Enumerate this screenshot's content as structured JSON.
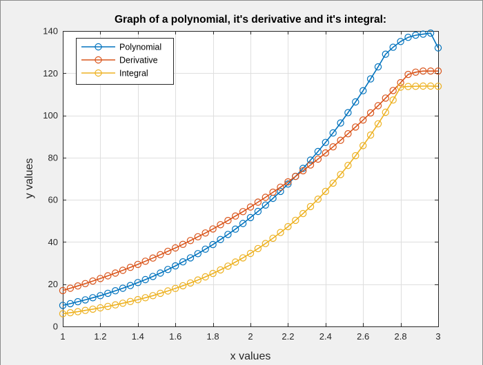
{
  "chart_data": {
    "type": "line",
    "title": "Graph of a polynomial, it's derivative and it's integral:",
    "xlabel": "x values",
    "ylabel": "y values",
    "xlim": [
      1,
      3
    ],
    "ylim": [
      0,
      140
    ],
    "xticks": [
      1,
      1.2,
      1.4,
      1.6,
      1.8,
      2,
      2.2,
      2.4,
      2.6,
      2.8,
      3
    ],
    "xtick_labels": [
      "1",
      "1.2",
      "1.4",
      "1.6",
      "1.8",
      "2",
      "2.2",
      "2.4",
      "2.6",
      "2.8",
      "3"
    ],
    "yticks": [
      0,
      20,
      40,
      60,
      80,
      100,
      120,
      140
    ],
    "ytick_labels": [
      "0",
      "20",
      "40",
      "60",
      "80",
      "100",
      "120",
      "140"
    ],
    "grid": true,
    "legend_position": "top-left",
    "x": [
      1.0,
      1.04,
      1.08,
      1.12,
      1.16,
      1.2,
      1.24,
      1.28,
      1.32,
      1.36,
      1.4,
      1.44,
      1.48,
      1.52,
      1.56,
      1.6,
      1.64,
      1.68,
      1.72,
      1.76,
      1.8,
      1.84,
      1.88,
      1.92,
      1.96,
      2.0,
      2.04,
      2.08,
      2.12,
      2.16,
      2.2,
      2.24,
      2.28,
      2.32,
      2.36,
      2.4,
      2.44,
      2.48,
      2.52,
      2.56,
      2.6,
      2.64,
      2.68,
      2.72,
      2.76,
      2.8,
      2.84,
      2.88,
      2.92,
      2.96,
      3.0
    ],
    "series": [
      {
        "name": "Polynomial",
        "color": "#0072bd",
        "values": [
          10.0,
          10.8,
          11.7,
          12.6,
          13.6,
          14.6,
          15.7,
          16.9,
          18.1,
          19.4,
          20.8,
          22.2,
          23.7,
          25.3,
          27.0,
          28.7,
          30.6,
          32.5,
          34.5,
          36.6,
          38.8,
          41.2,
          43.6,
          46.1,
          48.8,
          51.6,
          54.5,
          57.5,
          60.7,
          64.0,
          67.5,
          71.1,
          74.9,
          78.8,
          82.9,
          87.2,
          91.7,
          96.4,
          101.3,
          106.4,
          111.7,
          117.3,
          123.0,
          129.0,
          132.3,
          135.0,
          137.0,
          138.0,
          138.5,
          139.0,
          132.0
        ]
      },
      {
        "name": "Derivative",
        "color": "#d95319",
        "values": [
          17.0,
          18.1,
          19.2,
          20.3,
          21.5,
          22.7,
          24.0,
          25.3,
          26.6,
          28.0,
          29.4,
          30.9,
          32.4,
          34.0,
          35.6,
          37.2,
          38.9,
          40.7,
          42.5,
          44.3,
          46.2,
          48.2,
          50.2,
          52.3,
          54.4,
          56.6,
          58.9,
          61.2,
          63.6,
          66.0,
          68.5,
          71.1,
          73.8,
          76.5,
          79.3,
          82.2,
          85.1,
          88.2,
          91.3,
          94.5,
          97.8,
          101.2,
          104.6,
          108.2,
          111.8,
          115.5,
          119.4,
          120.5,
          121.0,
          121.0,
          121.0
        ]
      },
      {
        "name": "Integral",
        "color": "#edb120",
        "values": [
          6.0,
          6.5,
          7.0,
          7.6,
          8.2,
          8.8,
          9.5,
          10.2,
          11.0,
          11.8,
          12.7,
          13.6,
          14.6,
          15.7,
          16.8,
          18.0,
          19.3,
          20.6,
          22.0,
          23.5,
          25.1,
          26.8,
          28.6,
          30.5,
          32.5,
          34.6,
          36.9,
          39.3,
          41.8,
          44.5,
          47.3,
          50.3,
          53.5,
          56.8,
          60.3,
          64.0,
          67.9,
          72.0,
          76.3,
          80.9,
          85.7,
          90.7,
          96.0,
          101.5,
          107.3,
          113.4,
          113.7,
          113.8,
          113.9,
          113.9,
          113.8
        ]
      }
    ]
  }
}
